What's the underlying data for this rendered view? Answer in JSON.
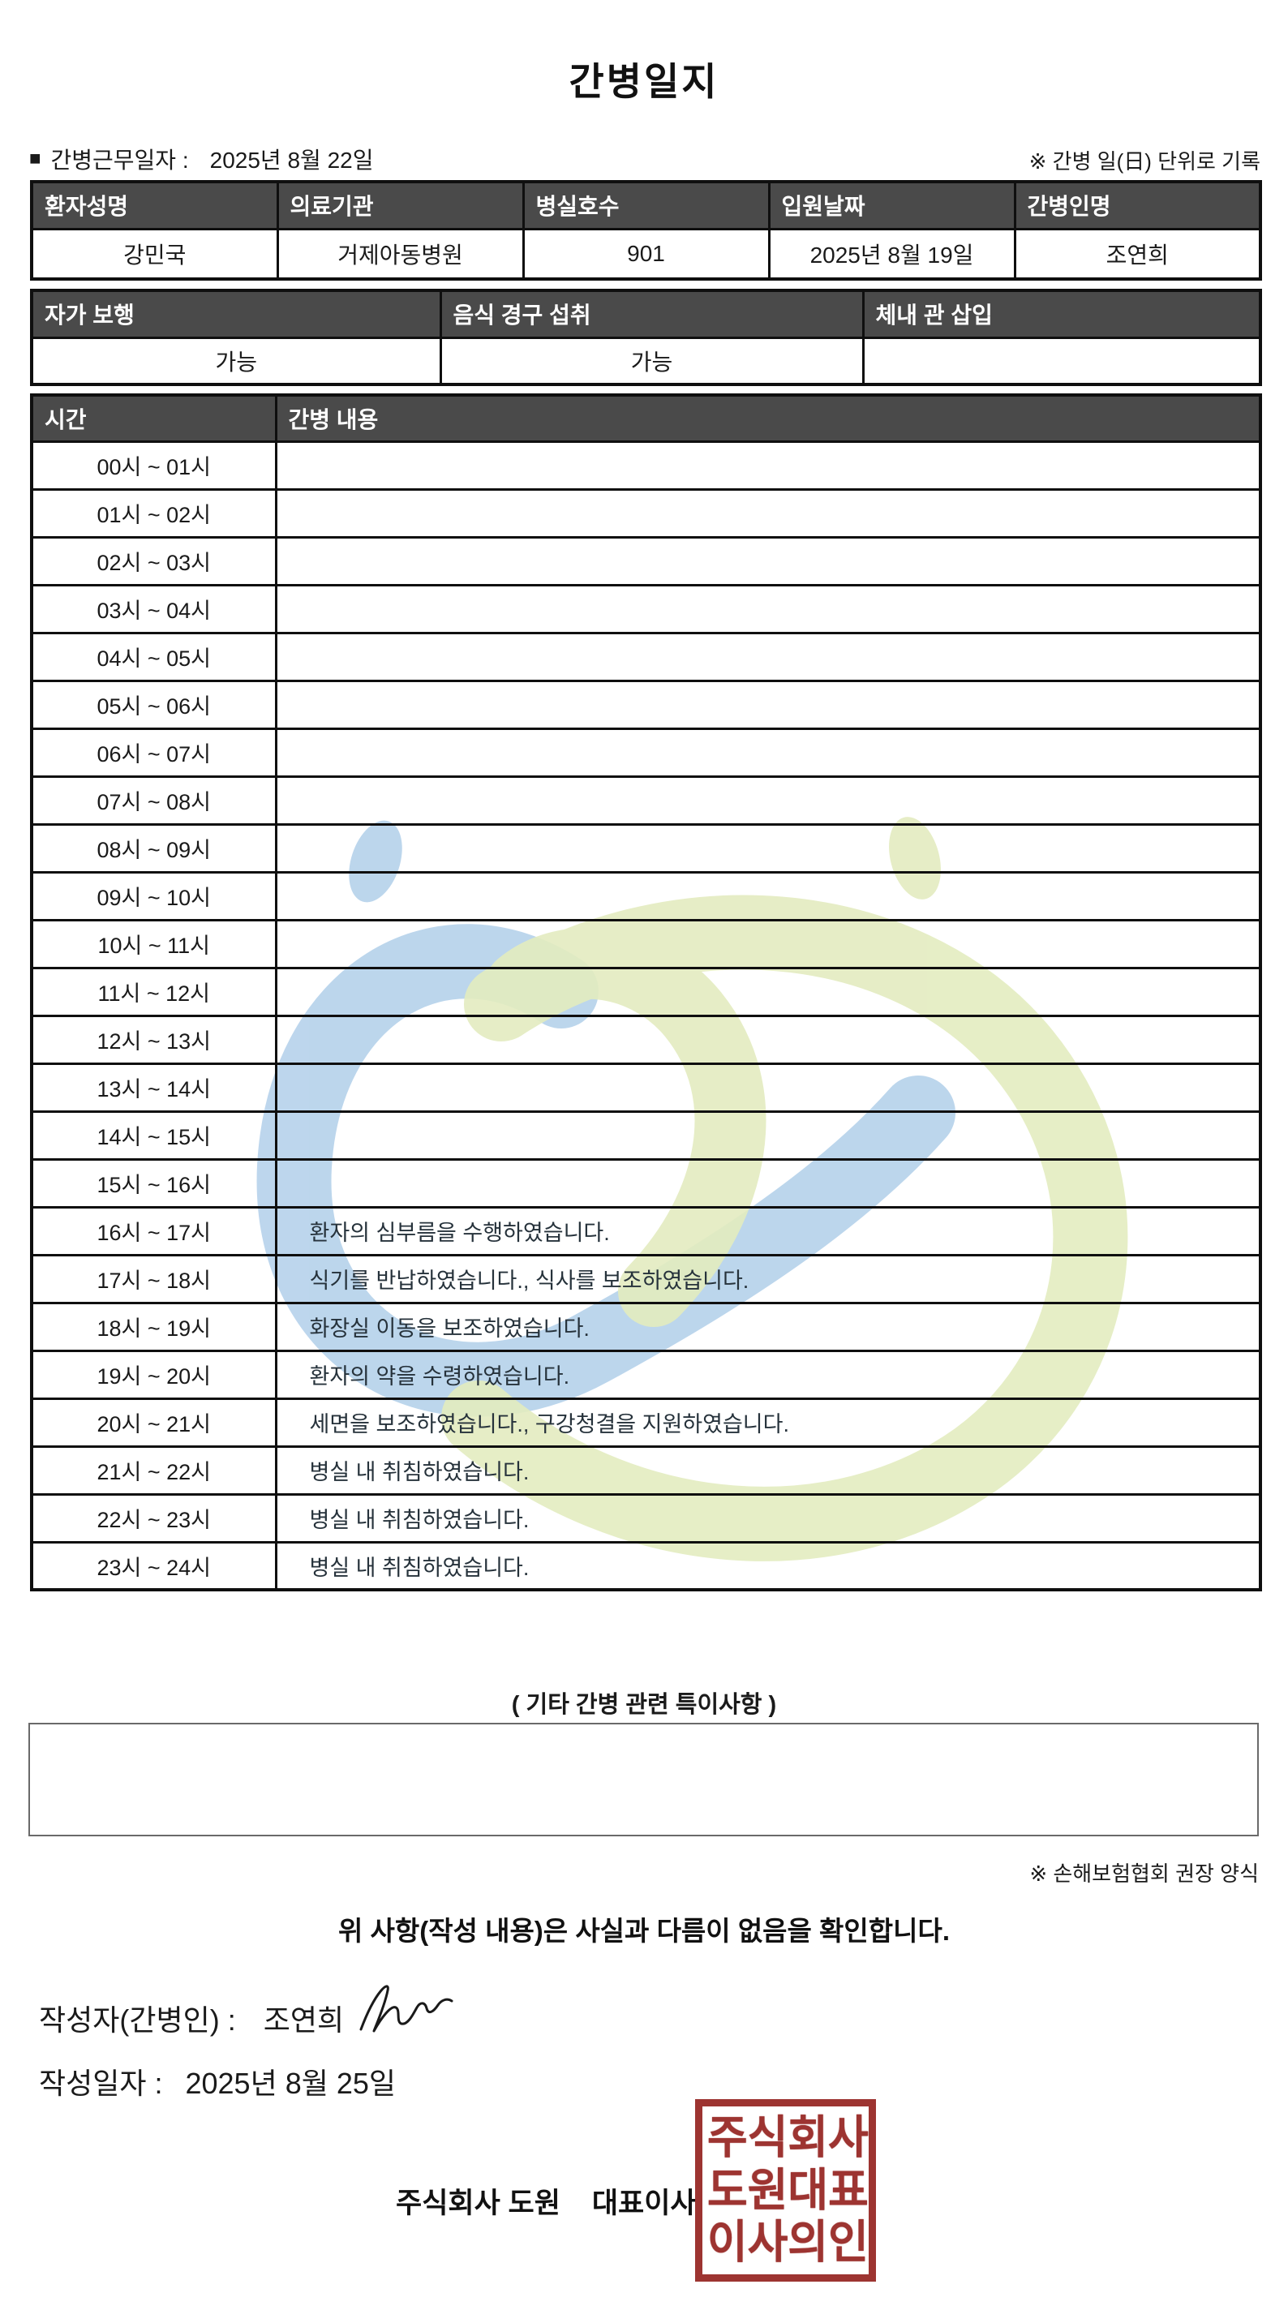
{
  "title": "간병일지",
  "meta": {
    "bullet": "■",
    "work_date_label": "간병근무일자  :",
    "work_date": "2025년 8월 22일",
    "unit_note": "※ 간병 일(日) 단위로 기록"
  },
  "patient_table": {
    "headers": [
      "환자성명",
      "의료기관",
      "병실호수",
      "입원날짜",
      "간병인명"
    ],
    "values": [
      "강민국",
      "거제아동병원",
      "901",
      "2025년 8월 19일",
      "조연희"
    ]
  },
  "status_table": {
    "headers": [
      "자가 보행",
      "음식 경구 섭취",
      "체내 관 삽입"
    ],
    "values": [
      "가능",
      "가능",
      ""
    ]
  },
  "care_table": {
    "time_header": "시간",
    "content_header": "간병 내용",
    "rows": [
      {
        "time": "00시 ~ 01시",
        "content": ""
      },
      {
        "time": "01시 ~ 02시",
        "content": ""
      },
      {
        "time": "02시 ~ 03시",
        "content": ""
      },
      {
        "time": "03시 ~ 04시",
        "content": ""
      },
      {
        "time": "04시 ~ 05시",
        "content": ""
      },
      {
        "time": "05시 ~ 06시",
        "content": ""
      },
      {
        "time": "06시 ~ 07시",
        "content": ""
      },
      {
        "time": "07시 ~ 08시",
        "content": ""
      },
      {
        "time": "08시 ~ 09시",
        "content": ""
      },
      {
        "time": "09시 ~ 10시",
        "content": ""
      },
      {
        "time": "10시 ~ 11시",
        "content": ""
      },
      {
        "time": "11시 ~ 12시",
        "content": ""
      },
      {
        "time": "12시 ~ 13시",
        "content": ""
      },
      {
        "time": "13시 ~ 14시",
        "content": ""
      },
      {
        "time": "14시 ~ 15시",
        "content": ""
      },
      {
        "time": "15시 ~ 16시",
        "content": ""
      },
      {
        "time": "16시 ~ 17시",
        "content": "환자의 심부름을 수행하였습니다."
      },
      {
        "time": "17시 ~ 18시",
        "content": "식기를 반납하였습니다., 식사를 보조하였습니다."
      },
      {
        "time": "18시 ~ 19시",
        "content": "화장실 이동을 보조하였습니다."
      },
      {
        "time": "19시 ~ 20시",
        "content": "환자의 약을 수령하였습니다."
      },
      {
        "time": "20시 ~ 21시",
        "content": "세면을 보조하였습니다., 구강청결을 지원하였습니다."
      },
      {
        "time": "21시 ~ 22시",
        "content": "병실 내 취침하였습니다."
      },
      {
        "time": "22시 ~ 23시",
        "content": "병실 내 취침하였습니다."
      },
      {
        "time": "23시 ~ 24시",
        "content": "병실 내 취침하였습니다."
      }
    ]
  },
  "notes": {
    "label": "( 기타 간병 관련 특이사항 )",
    "content": ""
  },
  "footer": {
    "form_note": "※ 손해보험협회 권장 양식",
    "confirmation": "위 사항(작성 내용)은 사실과 다름이 없음을 확인합니다.",
    "writer_label": "작성자(간병인) :",
    "writer_name": "조연희",
    "written_date_label": "작성일자 :",
    "written_date": "2025년 8월 25일",
    "company_line": "주식회사 도원    대표이사",
    "stamp_rows": [
      "주식회사",
      "도원대표",
      "이사의인"
    ]
  },
  "colors": {
    "header_bg": "#4a4a4a",
    "stamp_red": "#9d3431",
    "watermark_blue": "#b9d4ec",
    "watermark_green": "#e2ebbd",
    "border_black": "#0f0f0f"
  }
}
